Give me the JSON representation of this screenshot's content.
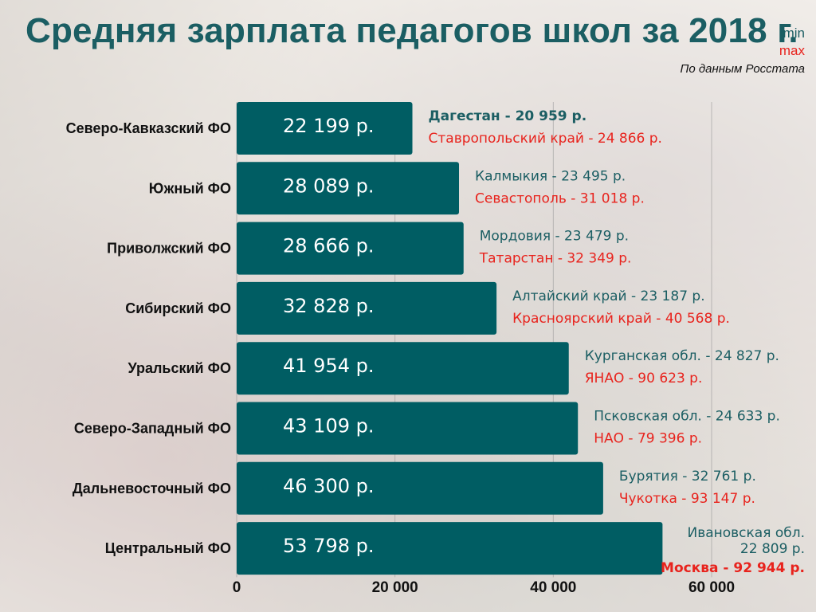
{
  "header": {
    "title": "Средняя зарплата педагогов школ за 2018 г.",
    "legend_min": "min",
    "legend_max": "max",
    "source": "По данным Росстата"
  },
  "colors": {
    "bar": "#005d63",
    "title": "#1b5e63",
    "min_text": "#1b5e63",
    "max_text": "#e8231d"
  },
  "chart_data": {
    "type": "bar",
    "orientation": "horizontal",
    "title": "Средняя зарплата педагогов школ за 2018 г.",
    "categories": [
      "Северо-Кавказский ФО",
      "Южный ФО",
      "Приволжский ФО",
      "Сибирский ФО",
      "Уральский ФО",
      "Северо-Западный ФО",
      "Дальневосточный ФО",
      "Центральный ФО"
    ],
    "values": [
      22199,
      28089,
      28666,
      32828,
      41954,
      43109,
      46300,
      53798
    ],
    "value_labels": [
      "22 199 р.",
      "28 089 р.",
      "28 666 р.",
      "32 828 р.",
      "41 954 р.",
      "43 109 р.",
      "46 300 р.",
      "53 798 р."
    ],
    "xlim": [
      0,
      60000
    ],
    "xticks": [
      0,
      20000,
      40000,
      60000
    ],
    "xtick_labels": [
      "0",
      "20 000",
      "40 000",
      "60 000"
    ],
    "grid": true,
    "annotations": [
      {
        "min": "Дагестан - 20 959 р.",
        "max": "Ставропольский край - 24 866 р."
      },
      {
        "min": "Калмыкия - 23 495 р.",
        "max": "Севастополь - 31 018 р."
      },
      {
        "min": "Мордовия - 23 479 р.",
        "max": "Татарстан - 32 349 р."
      },
      {
        "min": "Алтайский край - 23 187 р.",
        "max": "Красноярский край - 40 568 р."
      },
      {
        "min": "Курганская обл. - 24 827 р.",
        "max": "ЯНАО - 90 623 р."
      },
      {
        "min": "Псковская обл. - 24 633 р.",
        "max": "НАО - 79 396 р."
      },
      {
        "min": "Бурятия - 32 761 р.",
        "max": "Чукотка - 93 147 р."
      },
      {
        "min": "Ивановская обл.",
        "min2": "22 809 р.",
        "max": "Москва - 92 944 р."
      }
    ]
  }
}
